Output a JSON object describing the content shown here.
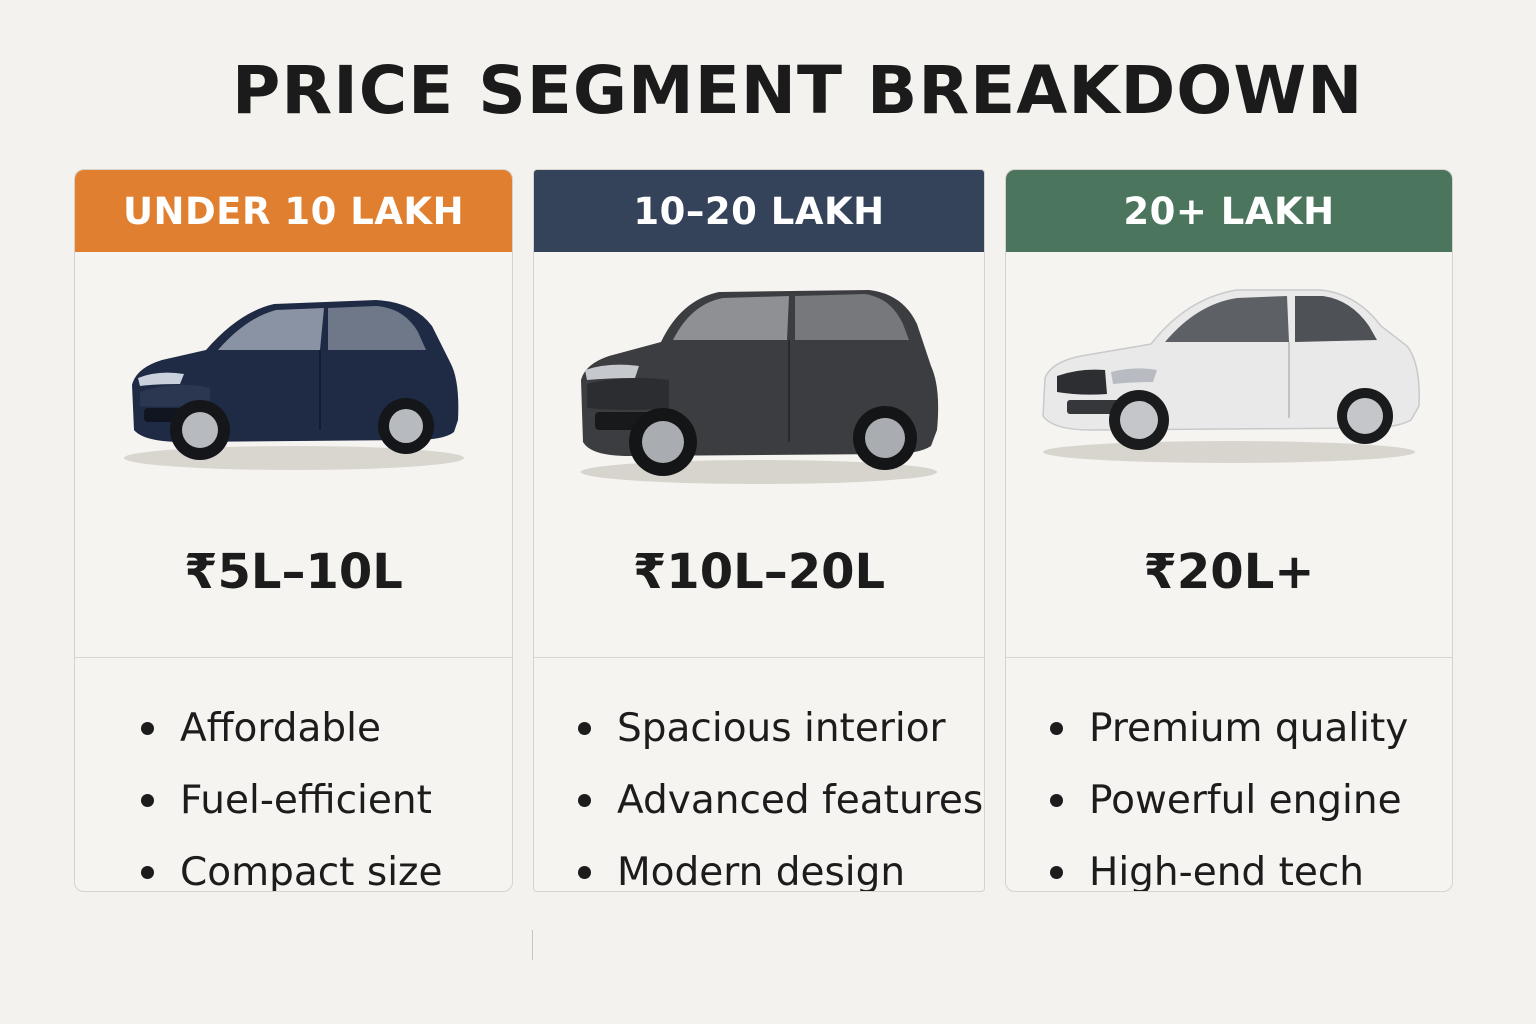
{
  "title": "PRICE SEGMENT BREAKDOWN",
  "segments": [
    {
      "header": "UNDER 10 LAKH",
      "header_color": "#e07f2f",
      "image": "hatchback-car",
      "car_color": "#1f2b45",
      "price": "₹5L–10L",
      "features": [
        "Affordable",
        "Fuel-efficient",
        "Compact size"
      ]
    },
    {
      "header": "10–20 LAKH",
      "header_color": "#34425a",
      "image": "suv-car",
      "car_color": "#3c3d40",
      "price": "₹10L–20L",
      "features": [
        "Spacious interior",
        "Advanced features",
        "Modern design"
      ]
    },
    {
      "header": "20+ LAKH",
      "header_color": "#4b755d",
      "image": "sedan-car",
      "car_color": "#e9e9ea",
      "price": "₹20L+",
      "features": [
        "Premium quality",
        "Powerful engine",
        "High-end tech"
      ]
    }
  ]
}
